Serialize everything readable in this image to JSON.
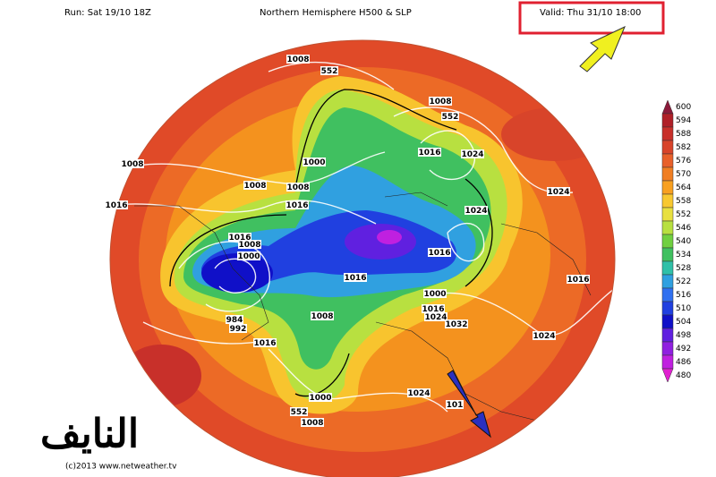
{
  "header": {
    "run": "Run: Sat 19/10 18Z",
    "title": "Northern Hemisphere H500 & SLP",
    "valid": "Valid: Thu 31/10 18:00"
  },
  "colorbar": {
    "levels": [
      600,
      594,
      588,
      582,
      576,
      570,
      564,
      558,
      552,
      546,
      540,
      534,
      528,
      522,
      516,
      510,
      504,
      498,
      492,
      486,
      480
    ],
    "colors": [
      "#8b1a3a",
      "#b02028",
      "#c8302a",
      "#d8442a",
      "#e8602a",
      "#f07e22",
      "#f8a020",
      "#f8c830",
      "#e8e040",
      "#b8e040",
      "#70d040",
      "#40c060",
      "#30c0a8",
      "#30a0e0",
      "#3070f0",
      "#2040e0",
      "#1010c8",
      "#6020e0",
      "#9020e0",
      "#c020e0",
      "#e020d0"
    ]
  },
  "contour_labels": [
    "1008",
    "552",
    "1008",
    "552",
    "1016",
    "1024",
    "1000",
    "1008",
    "1008",
    "1008",
    "1024",
    "1016",
    "1016",
    "1024",
    "1016",
    "1008",
    "1000",
    "1016",
    "1016",
    "1016",
    "1000",
    "1016",
    "1008",
    "1024",
    "1032",
    "984",
    "992",
    "1016",
    "1024",
    "1000",
    "1024",
    "101",
    "552",
    "1008"
  ],
  "watermark": "النايف",
  "credit": "(c)2013  www.netweather.tv"
}
